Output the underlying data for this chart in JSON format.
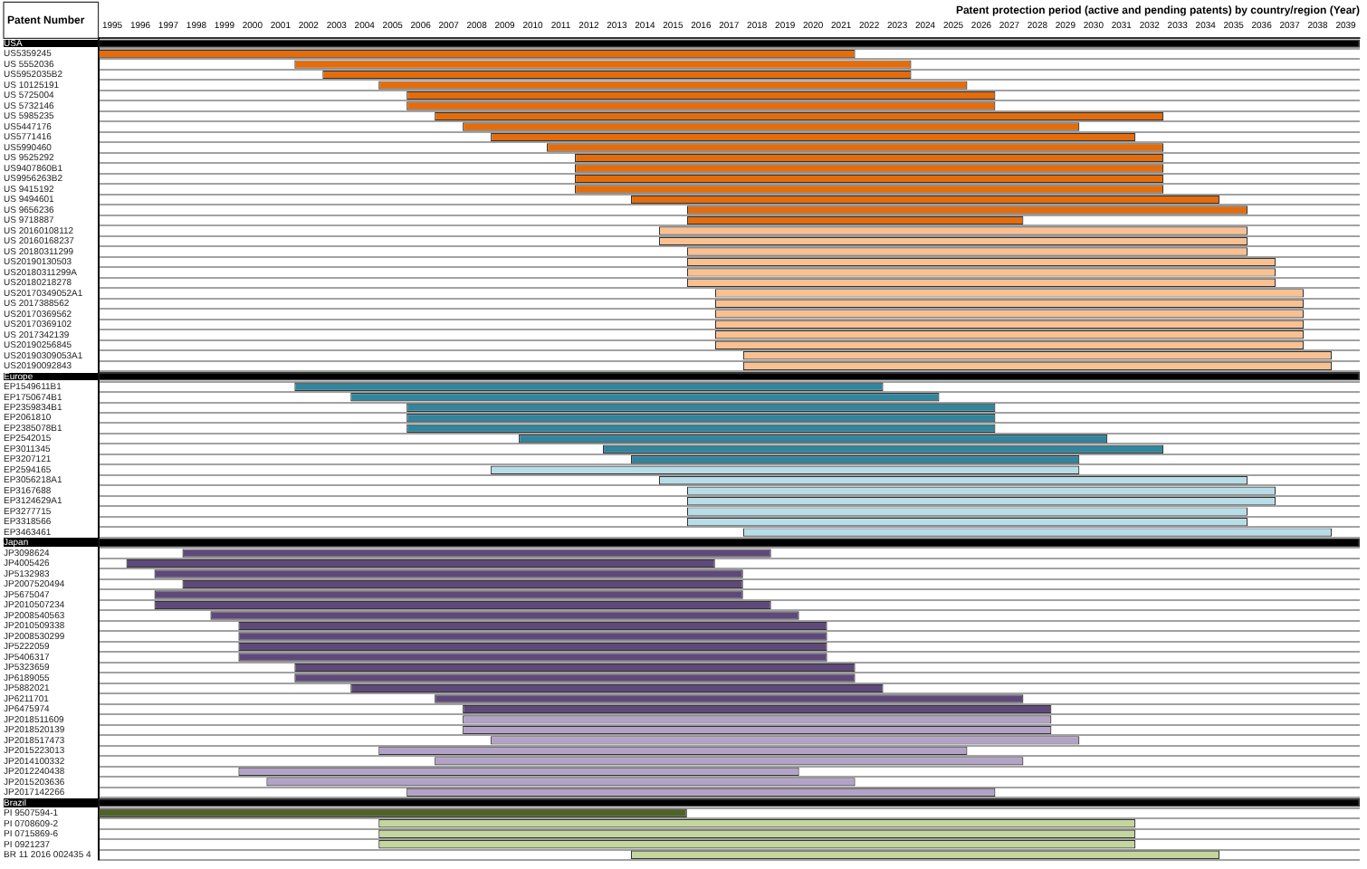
{
  "chart_data": {
    "type": "bar",
    "orientation": "horizontal",
    "xlabel": "Patent protection period (active and pending patents) by country/region (Year)",
    "ylabel": "Patent Number",
    "grid": "y",
    "legend": false,
    "categories": [
      "USA",
      "US5359245",
      "US 5552036",
      "US5952035B2",
      "US 10125191",
      "US 5725004",
      "US 5732146",
      "US 5985235",
      "US5447176",
      "US5771416",
      "US5990460",
      "US 9525292",
      "US9407860B1",
      "US9956263B2",
      "US 9415192",
      "US 9494601",
      "US 9656236",
      "US 9718887",
      "US 20160108112",
      "US 20160168237",
      "US 20180311299",
      "US20190130503",
      "US20180311299A",
      "US20180218278",
      "US20170349052A1",
      "US 2017388562",
      "US20170369562",
      "US20170369102",
      "US 2017342139",
      "US20190256845",
      "US20190309053A1",
      "US20190092843",
      "Europe",
      "EP1549611B1",
      "EP1750674B1",
      "EP2359834B1",
      "EP2061810",
      "EP2385078B1",
      "EP2542015",
      "EP3011345",
      "EP3207121",
      "EP2594165",
      "EP3056218A1",
      "EP3167688",
      "EP3124629A1",
      "EP3277715",
      "EP3318566",
      "EP3463461",
      "Japan",
      "JP3098624",
      "JP4005426",
      "JP5132983",
      "JP2007520494",
      "JP5675047",
      "JP2010507234",
      "JP2008540563",
      "JP2010509338",
      "JP2008530299",
      "JP5222059",
      "JP5406317",
      "JP5323659",
      "JP6189055",
      "JP5882021",
      "JP6211701",
      "JP6475974",
      "JP2018511609",
      "JP2018520139",
      "JP2018517473",
      "JP2015223013",
      "JP2014100332",
      "JP2012240438",
      "JP2015203636",
      "JP2017142266",
      "Brazil",
      "PI 9507594-1",
      "PI 0708609-2",
      "PI 0715869-6",
      "PI 0921237",
      "BR 11 2016 002435 4"
    ],
    "base": [
      1995,
      1995,
      2002,
      2003,
      2005,
      2006,
      2006,
      2007,
      2008,
      2009,
      2011,
      2012,
      2012,
      2012,
      2012,
      2014,
      2016,
      2016,
      2015,
      2015,
      2016,
      2016,
      2016,
      2016,
      2017,
      2017,
      2017,
      2017,
      2017,
      2017,
      2018,
      2018,
      1995,
      2002,
      2004,
      2006,
      2006,
      2006,
      2010,
      2013,
      2014,
      2009,
      2015,
      2016,
      2016,
      2016,
      2016,
      2018,
      1995,
      1998,
      1996,
      1997,
      1998,
      1997,
      1997,
      1999,
      2000,
      2000,
      2000,
      2000,
      2002,
      2002,
      2004,
      2007,
      2008,
      2008,
      2008,
      2009,
      2005,
      2007,
      2000,
      2001,
      2006,
      1995,
      1995,
      2005,
      2005,
      2005,
      2014
    ],
    "values": [
      45,
      27,
      22,
      21,
      21,
      21,
      21,
      26,
      22,
      23,
      22,
      21,
      21,
      21,
      21,
      21,
      20,
      12,
      21,
      21,
      20,
      21,
      21,
      21,
      21,
      21,
      21,
      21,
      21,
      21,
      21,
      21,
      45,
      21,
      21,
      21,
      21,
      21,
      21,
      20,
      16,
      21,
      21,
      21,
      21,
      20,
      20,
      21,
      45,
      21,
      21,
      21,
      20,
      21,
      22,
      21,
      21,
      21,
      21,
      21,
      20,
      20,
      19,
      21,
      21,
      21,
      21,
      21,
      21,
      21,
      20,
      21,
      21,
      45,
      21,
      27,
      27,
      27,
      21
    ],
    "colors": [
      "#000000",
      "#e46c0a",
      "#e46c0a",
      "#e46c0a",
      "#e46c0a",
      "#e46c0a",
      "#e46c0a",
      "#e46c0a",
      "#e46c0a",
      "#e46c0a",
      "#e46c0a",
      "#e46c0a",
      "#e46c0a",
      "#e46c0a",
      "#e46c0a",
      "#e46c0a",
      "#e46c0a",
      "#e46c0a",
      "#fac090",
      "#fac090",
      "#fac090",
      "#fac090",
      "#fac090",
      "#fac090",
      "#fac090",
      "#fac090",
      "#fac090",
      "#fac090",
      "#fac090",
      "#fac090",
      "#fac090",
      "#fac090",
      "#000000",
      "#31859c",
      "#31859c",
      "#31859c",
      "#31859c",
      "#31859c",
      "#31859c",
      "#31859c",
      "#31859c",
      "#b7dee8",
      "#b7dee8",
      "#b7dee8",
      "#b7dee8",
      "#b7dee8",
      "#b7dee8",
      "#b7dee8",
      "#000000",
      "#5f497a",
      "#5f497a",
      "#5f497a",
      "#5f497a",
      "#5f497a",
      "#5f497a",
      "#5f497a",
      "#5f497a",
      "#5f497a",
      "#5f497a",
      "#5f497a",
      "#5f497a",
      "#5f497a",
      "#5f497a",
      "#5f497a",
      "#5f497a",
      "#b3a2c7",
      "#b3a2c7",
      "#b3a2c7",
      "#b3a2c7",
      "#b3a2c7",
      "#b3a2c7",
      "#b3a2c7",
      "#b3a2c7",
      "#000000",
      "#4f6228",
      "#c3d69b",
      "#c3d69b",
      "#c3d69b",
      "#c3d69b"
    ],
    "xlim": [
      1995,
      2040
    ],
    "xticks": [
      {
        "value": 1995.5,
        "label": "1995"
      },
      {
        "value": 1996.5,
        "label": "1996"
      },
      {
        "value": 1997.5,
        "label": "1997"
      },
      {
        "value": 1998.5,
        "label": "1998"
      },
      {
        "value": 1999.5,
        "label": "1999"
      },
      {
        "value": 2000.5,
        "label": "2000"
      },
      {
        "value": 2001.5,
        "label": "2001"
      },
      {
        "value": 2002.5,
        "label": "2002"
      },
      {
        "value": 2003.5,
        "label": "2003"
      },
      {
        "value": 2004.5,
        "label": "2004"
      },
      {
        "value": 2005.5,
        "label": "2005"
      },
      {
        "value": 2006.5,
        "label": "2006"
      },
      {
        "value": 2007.5,
        "label": "2007"
      },
      {
        "value": 2008.5,
        "label": "2008"
      },
      {
        "value": 2009.5,
        "label": "2009"
      },
      {
        "value": 2010.5,
        "label": "2010"
      },
      {
        "value": 2011.5,
        "label": "2011"
      },
      {
        "value": 2012.5,
        "label": "2012"
      },
      {
        "value": 2013.5,
        "label": "2013"
      },
      {
        "value": 2014.5,
        "label": "2014"
      },
      {
        "value": 2015.5,
        "label": "2015"
      },
      {
        "value": 2016.5,
        "label": "2016"
      },
      {
        "value": 2017.5,
        "label": "2017"
      },
      {
        "value": 2018.5,
        "label": "2018"
      },
      {
        "value": 2019.5,
        "label": "2019"
      },
      {
        "value": 2020.5,
        "label": "2020"
      },
      {
        "value": 2021.5,
        "label": "2021"
      },
      {
        "value": 2022.5,
        "label": "2022"
      },
      {
        "value": 2023.5,
        "label": "2023"
      },
      {
        "value": 2024.5,
        "label": "2024"
      },
      {
        "value": 2025.5,
        "label": "2025"
      },
      {
        "value": 2026.5,
        "label": "2026"
      },
      {
        "value": 2027.5,
        "label": "2027"
      },
      {
        "value": 2028.5,
        "label": "2028"
      },
      {
        "value": 2029.5,
        "label": "2029"
      },
      {
        "value": 2030.5,
        "label": "2030"
      },
      {
        "value": 2031.5,
        "label": "2031"
      },
      {
        "value": 2032.5,
        "label": "2032"
      },
      {
        "value": 2033.5,
        "label": "2033"
      },
      {
        "value": 2034.5,
        "label": "2034"
      },
      {
        "value": 2035.5,
        "label": "2035"
      },
      {
        "value": 2036.5,
        "label": "2036"
      },
      {
        "value": 2037.5,
        "label": "2037"
      },
      {
        "value": 2038.5,
        "label": "2038"
      },
      {
        "value": 2039.5,
        "label": "2039"
      }
    ]
  }
}
